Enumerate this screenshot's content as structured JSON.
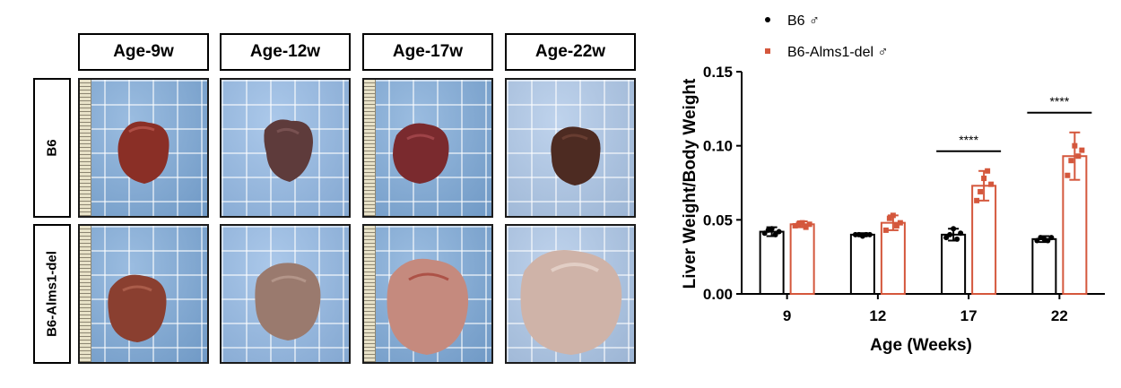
{
  "panel": {
    "columns": [
      "Age-9w",
      "Age-12w",
      "Age-17w",
      "Age-22w"
    ],
    "rows": [
      "B6",
      "B6-Alms1-del"
    ]
  },
  "chart_data": {
    "type": "bar",
    "xlabel": "Age (Weeks)",
    "ylabel": "Liver Weight/Body Weight",
    "categories": [
      "9",
      "12",
      "17",
      "22"
    ],
    "ylim": [
      0,
      0.15
    ],
    "yticks": [
      "0.00",
      "0.05",
      "0.10",
      "0.15"
    ],
    "legend_position": "top",
    "series": [
      {
        "name": "B6 ♂",
        "color": "#000000",
        "values": [
          0.042,
          0.04,
          0.04,
          0.037
        ],
        "sd": [
          0.003,
          0.001,
          0.004,
          0.002
        ],
        "points": [
          [
            0.041,
            0.043,
            0.044,
            0.04,
            0.042
          ],
          [
            0.04,
            0.04,
            0.039,
            0.04,
            0.04
          ],
          [
            0.038,
            0.04,
            0.044,
            0.037,
            0.041
          ],
          [
            0.036,
            0.038,
            0.037,
            0.036,
            0.038
          ]
        ]
      },
      {
        "name": "B6-Alms1-del ♂",
        "color": "#d4573c",
        "values": [
          0.047,
          0.048,
          0.073,
          0.093
        ],
        "sd": [
          0.002,
          0.005,
          0.01,
          0.016
        ],
        "points": [
          [
            0.046,
            0.047,
            0.048,
            0.045,
            0.047
          ],
          [
            0.043,
            0.051,
            0.053,
            0.046,
            0.048
          ],
          [
            0.063,
            0.069,
            0.078,
            0.083,
            0.074
          ],
          [
            0.08,
            0.09,
            0.1,
            0.093,
            0.097
          ]
        ]
      }
    ],
    "significance": [
      {
        "category": "17",
        "label": "****"
      },
      {
        "category": "22",
        "label": "****"
      }
    ]
  }
}
